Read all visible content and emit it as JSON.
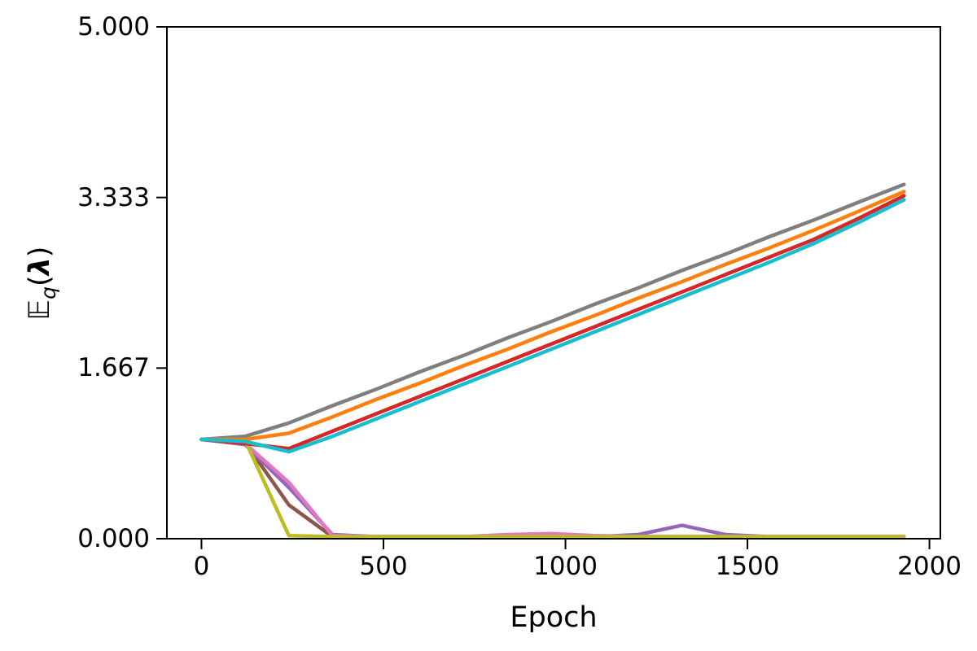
{
  "labels": {
    "xlabel": "Epoch",
    "ylabel_e": "𝔼",
    "ylabel_sub": "q",
    "ylabel_open": "(",
    "ylabel_lambda": "λ",
    "ylabel_close": ")"
  },
  "chart_data": {
    "type": "line",
    "title": "",
    "xlabel": "Epoch",
    "ylabel": "E_q(lambda)",
    "grid": false,
    "legend": "none",
    "xlim": [
      -95,
      2030
    ],
    "ylim": [
      0,
      5
    ],
    "xticks": [
      {
        "value": 0,
        "label": "0"
      },
      {
        "value": 500,
        "label": "500"
      },
      {
        "value": 1000,
        "label": "1000"
      },
      {
        "value": 1500,
        "label": "1500"
      },
      {
        "value": 2000,
        "label": "2000"
      }
    ],
    "yticks": [
      {
        "value": 0,
        "label": "0.000"
      },
      {
        "value": 1.6667,
        "label": "1.667"
      },
      {
        "value": 3.3333,
        "label": "3.333"
      },
      {
        "value": 5,
        "label": "5.000"
      }
    ],
    "x": [
      0,
      120,
      240,
      360,
      480,
      600,
      720,
      840,
      960,
      1080,
      1200,
      1320,
      1440,
      1560,
      1680,
      1800,
      1930
    ],
    "series": [
      {
        "name": "brown",
        "color": "#8c564b",
        "values": [
          0.97,
          0.94,
          0.33,
          0.02,
          0.02,
          0.02,
          0.02,
          0.02,
          0.02,
          0.02,
          0.02,
          0.02,
          0.02,
          0.02,
          0.02,
          0.02,
          0.02
        ]
      },
      {
        "name": "purple",
        "color": "#9467bd",
        "values": [
          0.97,
          0.92,
          0.5,
          0.04,
          0.02,
          0.02,
          0.02,
          0.02,
          0.02,
          0.02,
          0.04,
          0.13,
          0.04,
          0.02,
          0.02,
          0.02,
          0.02
        ]
      },
      {
        "name": "pink",
        "color": "#e377c2",
        "values": [
          0.97,
          0.93,
          0.55,
          0.03,
          0.02,
          0.02,
          0.02,
          0.04,
          0.05,
          0.03,
          0.02,
          0.02,
          0.02,
          0.02,
          0.02,
          0.02,
          0.02
        ]
      },
      {
        "name": "yellow",
        "color": "#bcbd22",
        "values": [
          0.97,
          0.96,
          0.03,
          0.02,
          0.02,
          0.02,
          0.02,
          0.02,
          0.02,
          0.02,
          0.02,
          0.02,
          0.02,
          0.02,
          0.02,
          0.02,
          0.02
        ]
      },
      {
        "name": "gray",
        "color": "#7f7f7f",
        "values": [
          0.97,
          1.0,
          1.13,
          1.3,
          1.46,
          1.63,
          1.79,
          1.96,
          2.12,
          2.29,
          2.45,
          2.62,
          2.78,
          2.95,
          3.11,
          3.28,
          3.46
        ]
      },
      {
        "name": "orange",
        "color": "#ff7f0e",
        "values": [
          0.97,
          0.97,
          1.03,
          1.19,
          1.36,
          1.52,
          1.69,
          1.85,
          2.02,
          2.18,
          2.35,
          2.51,
          2.68,
          2.84,
          3.01,
          3.19,
          3.39
        ]
      },
      {
        "name": "red",
        "color": "#d62728",
        "values": [
          0.97,
          0.93,
          0.88,
          1.05,
          1.22,
          1.39,
          1.56,
          1.73,
          1.9,
          2.07,
          2.24,
          2.41,
          2.58,
          2.75,
          2.92,
          3.12,
          3.35
        ]
      },
      {
        "name": "cyan",
        "color": "#17becf",
        "values": [
          0.97,
          0.95,
          0.85,
          1.0,
          1.17,
          1.34,
          1.51,
          1.68,
          1.85,
          2.02,
          2.19,
          2.36,
          2.53,
          2.7,
          2.88,
          3.08,
          3.31
        ]
      }
    ]
  }
}
